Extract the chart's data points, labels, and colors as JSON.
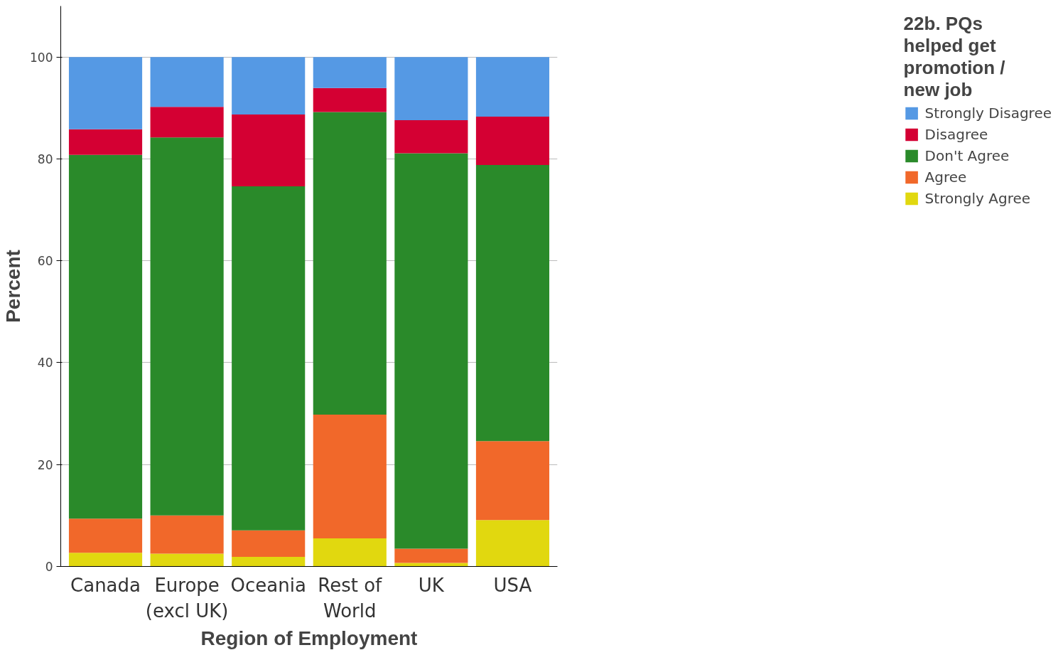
{
  "chart_data": {
    "type": "bar",
    "stacked": true,
    "xlabel": "Region of Employment",
    "ylabel": "Percent",
    "legend_title": "22b. PQs\nhelped get\npromotion /\nnew job",
    "categories": [
      "Canada",
      "Europe\n(excl UK)",
      "Oceania",
      "Rest of\nWorld",
      "UK",
      "USA"
    ],
    "series": [
      {
        "name": "Strongly Agree",
        "color": "#e1d80f",
        "values": [
          2.7,
          2.5,
          1.9,
          5.5,
          0.7,
          9.1
        ]
      },
      {
        "name": "Agree",
        "color": "#f1682a",
        "values": [
          6.7,
          7.5,
          5.2,
          24.3,
          2.8,
          15.5
        ]
      },
      {
        "name": "Don't Agree",
        "color": "#2a8a2a",
        "values": [
          71.4,
          74.2,
          67.5,
          59.4,
          77.6,
          54.2
        ]
      },
      {
        "name": "Disagree",
        "color": "#d40033",
        "values": [
          5.0,
          6.0,
          14.1,
          4.7,
          6.5,
          9.5
        ]
      },
      {
        "name": "Strongly Disagree",
        "color": "#5599e4",
        "values": [
          14.2,
          9.8,
          11.3,
          6.1,
          12.4,
          11.7
        ]
      }
    ],
    "ylim": [
      0,
      110
    ],
    "yticks": [
      0,
      20,
      40,
      60,
      80,
      100
    ],
    "grid": "y",
    "legend": "right"
  }
}
